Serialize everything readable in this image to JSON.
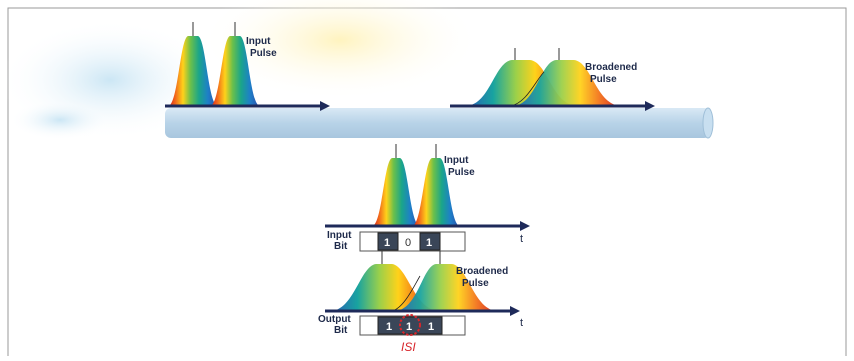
{
  "top": {
    "input_label": [
      "Input",
      "Pulse"
    ],
    "broadened_label": [
      "Broadened",
      "Pulse"
    ]
  },
  "middle": {
    "input_label": [
      "Input",
      "Pulse"
    ],
    "axis_label": "t",
    "row_label": [
      "Input",
      "Bit"
    ],
    "bits": [
      "1",
      "0",
      "1"
    ]
  },
  "bottom": {
    "broadened_label": [
      "Broadened",
      "Pulse"
    ],
    "axis_label": "t",
    "row_label": [
      "Output",
      "Bit"
    ],
    "bits": [
      "1",
      "1",
      "1"
    ],
    "isi_label": "ISI"
  },
  "colors": {
    "frame": "#9a9a9a",
    "axis": "#1e2a5a",
    "fiber": "#bcd6ea",
    "bit_fill": "#3a4658",
    "isi_ring": "#d8262b"
  }
}
